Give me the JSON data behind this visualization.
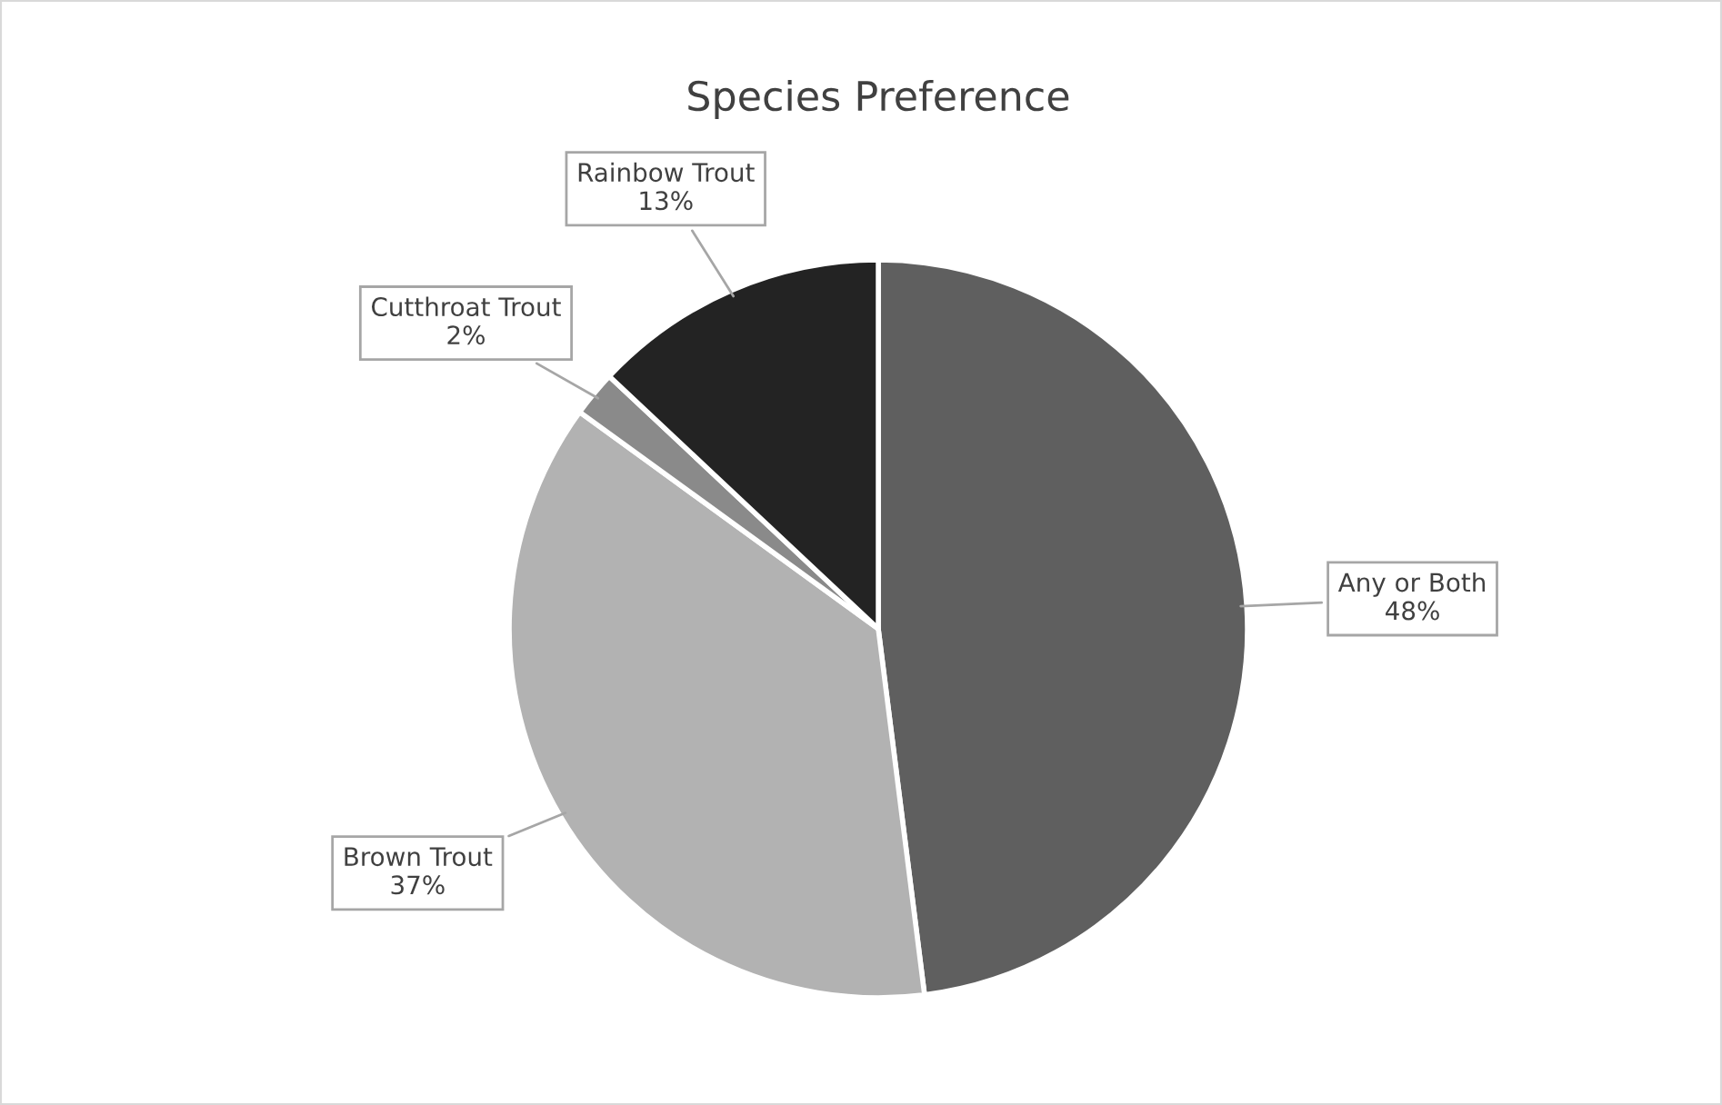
{
  "chart_data": {
    "type": "pie",
    "title": "Species Preference",
    "categories": [
      "Any or Both",
      "Brown Trout",
      "Cutthroat Trout",
      "Rainbow Trout"
    ],
    "values": [
      48,
      37,
      2,
      13
    ],
    "colors": [
      "#5f5f5f",
      "#b2b2b2",
      "#8a8a8a",
      "#232323"
    ],
    "value_labels": [
      "48%",
      "37%",
      "2%",
      "13%"
    ],
    "legend": false
  }
}
